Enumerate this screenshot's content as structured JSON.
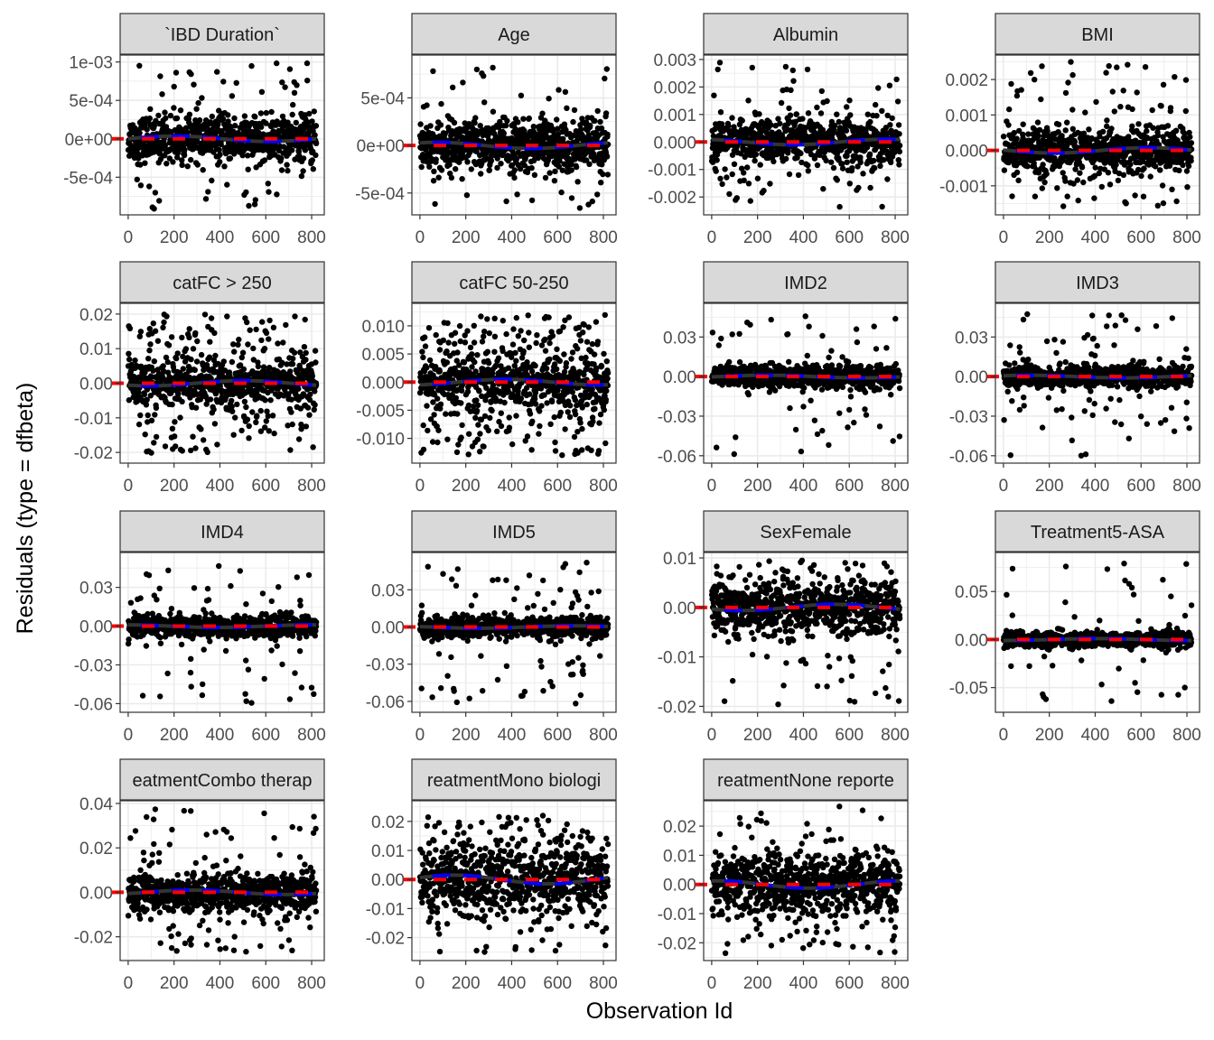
{
  "chart_data": {
    "type": "scatter",
    "title": "",
    "xlabel": "Observation Id",
    "ylabel": "Residuals (type = dfbeta)",
    "xlim": [
      -35,
      855
    ],
    "xticks": [
      0,
      200,
      400,
      600,
      800
    ],
    "xtick_labels": [
      "0",
      "200",
      "400",
      "600",
      "800"
    ],
    "n_observations": 820,
    "reference_line": {
      "y": 0,
      "color": "#ff0000",
      "style": "dashed"
    },
    "smooth_line": {
      "color": "#0000ff",
      "style": "dashed"
    },
    "loess_line": {
      "color": "#333333",
      "style": "solid"
    },
    "point_color": "#000000",
    "grid": true,
    "panels": [
      {
        "label": "`IBD Duration`",
        "ylim": [
          -0.00099,
          0.00109
        ],
        "yticks": [
          0.001,
          0.0005,
          0,
          -0.0005
        ],
        "ytick_labels": [
          "1e-03",
          "5e-04",
          "0e+00",
          "-5e-04"
        ],
        "spread": {
          "core_sd": 0.00014,
          "outlier_frac": 0.15,
          "outlier_range": [
            -0.00092,
            0.001
          ]
        }
      },
      {
        "label": "Age",
        "ylim": [
          -0.00073,
          0.00095
        ],
        "yticks": [
          0.0005,
          0,
          -0.0005
        ],
        "ytick_labels": [
          "5e-04",
          "0e+00",
          "-5e-04"
        ],
        "spread": {
          "core_sd": 0.00013,
          "outlier_frac": 0.12,
          "outlier_range": [
            -0.00066,
            0.00085
          ]
        }
      },
      {
        "label": "Albumin",
        "ylim": [
          -0.00265,
          0.00316
        ],
        "yticks": [
          0.003,
          0.002,
          0.001,
          0,
          -0.001,
          -0.002
        ],
        "ytick_labels": [
          "0.003",
          "0.002",
          "0.001",
          "0.000",
          "-0.001",
          "-0.002"
        ],
        "spread": {
          "core_sd": 0.0004,
          "outlier_frac": 0.15,
          "outlier_range": [
            -0.0024,
            0.0029
          ]
        }
      },
      {
        "label": "BMI",
        "ylim": [
          -0.00182,
          0.00269
        ],
        "yticks": [
          0.002,
          0.001,
          0,
          -0.001
        ],
        "ytick_labels": [
          "0.002",
          "0.001",
          "0.000",
          "-0.001"
        ],
        "spread": {
          "core_sd": 0.0003,
          "outlier_frac": 0.15,
          "outlier_range": [
            -0.0016,
            0.0025
          ]
        }
      },
      {
        "label": "catFC > 250",
        "ylim": [
          -0.0231,
          0.0231
        ],
        "yticks": [
          0.02,
          0.01,
          0,
          -0.01,
          -0.02
        ],
        "ytick_labels": [
          "0.02",
          "0.01",
          "0.00",
          "-0.01",
          "-0.02"
        ],
        "spread": {
          "core_sd": 0.003,
          "outlier_frac": 0.35,
          "outlier_range": [
            -0.021,
            0.021
          ]
        }
      },
      {
        "label": "catFC 50-250",
        "ylim": [
          -0.0144,
          0.014
        ],
        "yticks": [
          0.01,
          0.005,
          0,
          -0.005,
          -0.01
        ],
        "ytick_labels": [
          "0.010",
          "0.005",
          "0.000",
          "-0.005",
          "-0.010"
        ],
        "spread": {
          "core_sd": 0.002,
          "outlier_frac": 0.5,
          "outlier_range": [
            -0.013,
            0.012
          ]
        }
      },
      {
        "label": "IMD2",
        "ylim": [
          -0.0656,
          0.0555
        ],
        "yticks": [
          0.03,
          0,
          -0.03,
          -0.06
        ],
        "ytick_labels": [
          "0.03",
          "0.00",
          "-0.03",
          "-0.06"
        ],
        "spread": {
          "core_sd": 0.004,
          "outlier_frac": 0.12,
          "outlier_range": [
            -0.06,
            0.047
          ]
        }
      },
      {
        "label": "IMD3",
        "ylim": [
          -0.0656,
          0.0555
        ],
        "yticks": [
          0.03,
          0,
          -0.03,
          -0.06
        ],
        "ytick_labels": [
          "0.03",
          "0.00",
          "-0.03",
          "-0.06"
        ],
        "spread": {
          "core_sd": 0.004,
          "outlier_frac": 0.12,
          "outlier_range": [
            -0.06,
            0.048
          ]
        }
      },
      {
        "label": "IMD4",
        "ylim": [
          -0.0667,
          0.057
        ],
        "yticks": [
          0.03,
          0,
          -0.03,
          -0.06
        ],
        "ytick_labels": [
          "0.03",
          "0.00",
          "-0.03",
          "-0.06"
        ],
        "spread": {
          "core_sd": 0.004,
          "outlier_frac": 0.12,
          "outlier_range": [
            -0.062,
            0.047
          ]
        }
      },
      {
        "label": "IMD5",
        "ylim": [
          -0.0688,
          0.0601
        ],
        "yticks": [
          0.03,
          0,
          -0.03,
          -0.06
        ],
        "ytick_labels": [
          "0.03",
          "0.00",
          "-0.03",
          "-0.06"
        ],
        "spread": {
          "core_sd": 0.004,
          "outlier_frac": 0.12,
          "outlier_range": [
            -0.062,
            0.052
          ]
        }
      },
      {
        "label": "SexFemale",
        "ylim": [
          -0.0212,
          0.0111
        ],
        "yticks": [
          0.01,
          0,
          -0.01,
          -0.02
        ],
        "ytick_labels": [
          "0.01",
          "0.00",
          "-0.01",
          "-0.02"
        ],
        "spread": {
          "core_sd": 0.0025,
          "outlier_frac": 0.15,
          "outlier_range": [
            -0.02,
            0.0095
          ]
        }
      },
      {
        "label": "Treatment5-ASA",
        "ylim": [
          -0.0757,
          0.0906
        ],
        "yticks": [
          0.05,
          0,
          -0.05
        ],
        "ytick_labels": [
          "0.05",
          "0.00",
          "-0.05"
        ],
        "spread": {
          "core_sd": 0.004,
          "outlier_frac": 0.06,
          "outlier_range": [
            -0.07,
            0.08
          ]
        }
      },
      {
        "label": "eatmentCombo therap",
        "ylim": [
          -0.0307,
          0.0412
        ],
        "yticks": [
          0.04,
          0.02,
          0,
          -0.02
        ],
        "ytick_labels": [
          "0.04",
          "0.02",
          "0.00",
          "-0.02"
        ],
        "spread": {
          "core_sd": 0.004,
          "outlier_frac": 0.2,
          "outlier_range": [
            -0.027,
            0.038
          ]
        }
      },
      {
        "label": "reatmentMono biologi",
        "ylim": [
          -0.0279,
          0.0271
        ],
        "yticks": [
          0.02,
          0.01,
          0,
          -0.01,
          -0.02
        ],
        "ytick_labels": [
          "0.02",
          "0.01",
          "0.00",
          "-0.01",
          "-0.02"
        ],
        "spread": {
          "core_sd": 0.006,
          "outlier_frac": 0.2,
          "outlier_range": [
            -0.025,
            0.024
          ]
        }
      },
      {
        "label": "reatmentNone reporte",
        "ylim": [
          -0.0261,
          0.0287
        ],
        "yticks": [
          0.02,
          0.01,
          0,
          -0.01,
          -0.02
        ],
        "ytick_labels": [
          "0.02",
          "0.01",
          "0.00",
          "-0.01",
          "-0.02"
        ],
        "spread": {
          "core_sd": 0.005,
          "outlier_frac": 0.2,
          "outlier_range": [
            -0.024,
            0.027
          ]
        }
      }
    ]
  }
}
